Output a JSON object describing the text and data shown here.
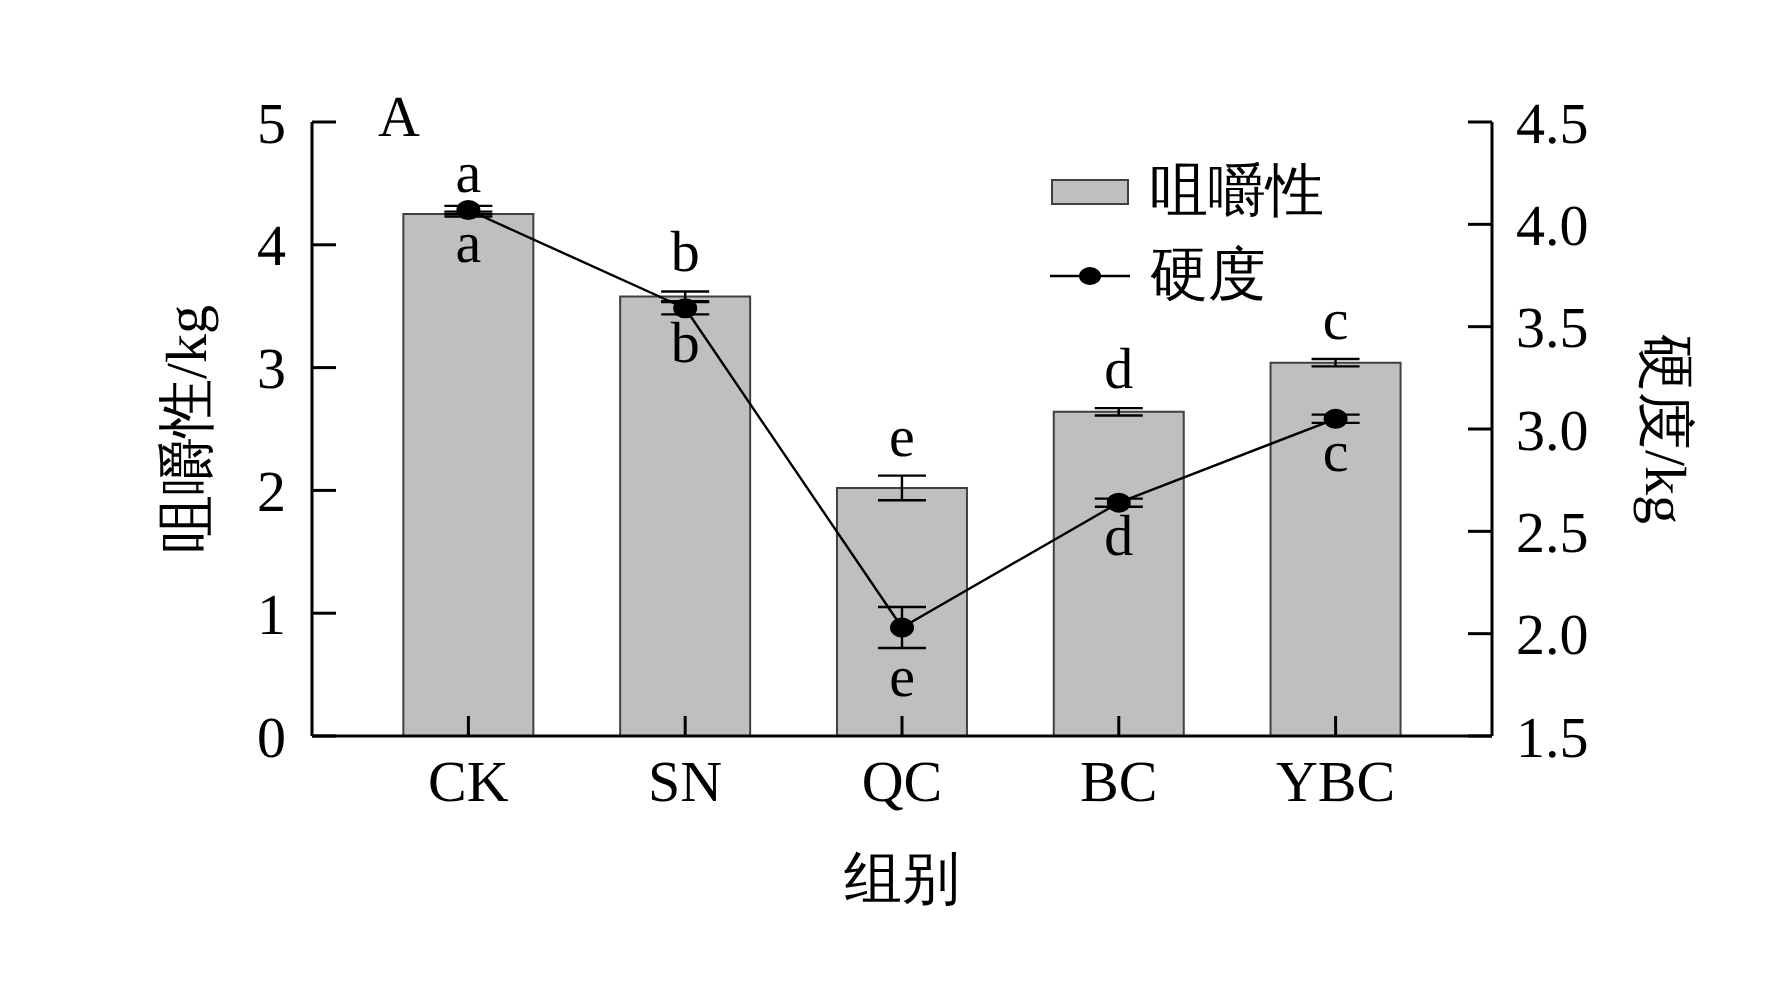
{
  "chart_data": {
    "type": "bar",
    "xlabel": "组别",
    "ylabel": "咀嚼性/kg",
    "y2label": "硬度/kg",
    "annotations": [
      "A"
    ],
    "categories": [
      "CK",
      "SN",
      "QC",
      "BC",
      "YBC"
    ],
    "series": [
      {
        "name": "咀嚼性",
        "color": "#bfbfbf",
        "values": [
          4.25,
          3.58,
          2.02,
          2.64,
          3.04
        ],
        "errors": [
          0.02,
          0.04,
          0.1,
          0.03,
          0.03
        ],
        "value_labels": [
          "a",
          "b",
          "e",
          "d",
          "c"
        ]
      },
      {
        "name": "硬度",
        "type": "line",
        "axis": "y2",
        "color": "#000000",
        "values": [
          4.07,
          3.59,
          2.03,
          2.64,
          3.05
        ],
        "errors": [
          0.02,
          0.03,
          0.1,
          0.02,
          0.02
        ],
        "value_labels": [
          "a",
          "b",
          "e",
          "d",
          "c"
        ]
      }
    ],
    "ylim": [
      0,
      5
    ],
    "yticks": [
      0,
      1,
      2,
      3,
      4,
      5
    ],
    "y2lim": [
      1.5,
      4.5
    ],
    "y2ticks": [
      1.5,
      {
        "value": 2,
        "label": "2.0"
      },
      2.5,
      {
        "value": 3,
        "label": "3.0"
      },
      3.5,
      {
        "value": 4,
        "label": "4.0"
      },
      4.5
    ],
    "legend": "top right",
    "marker": "circle",
    "line_style": "solid"
  }
}
